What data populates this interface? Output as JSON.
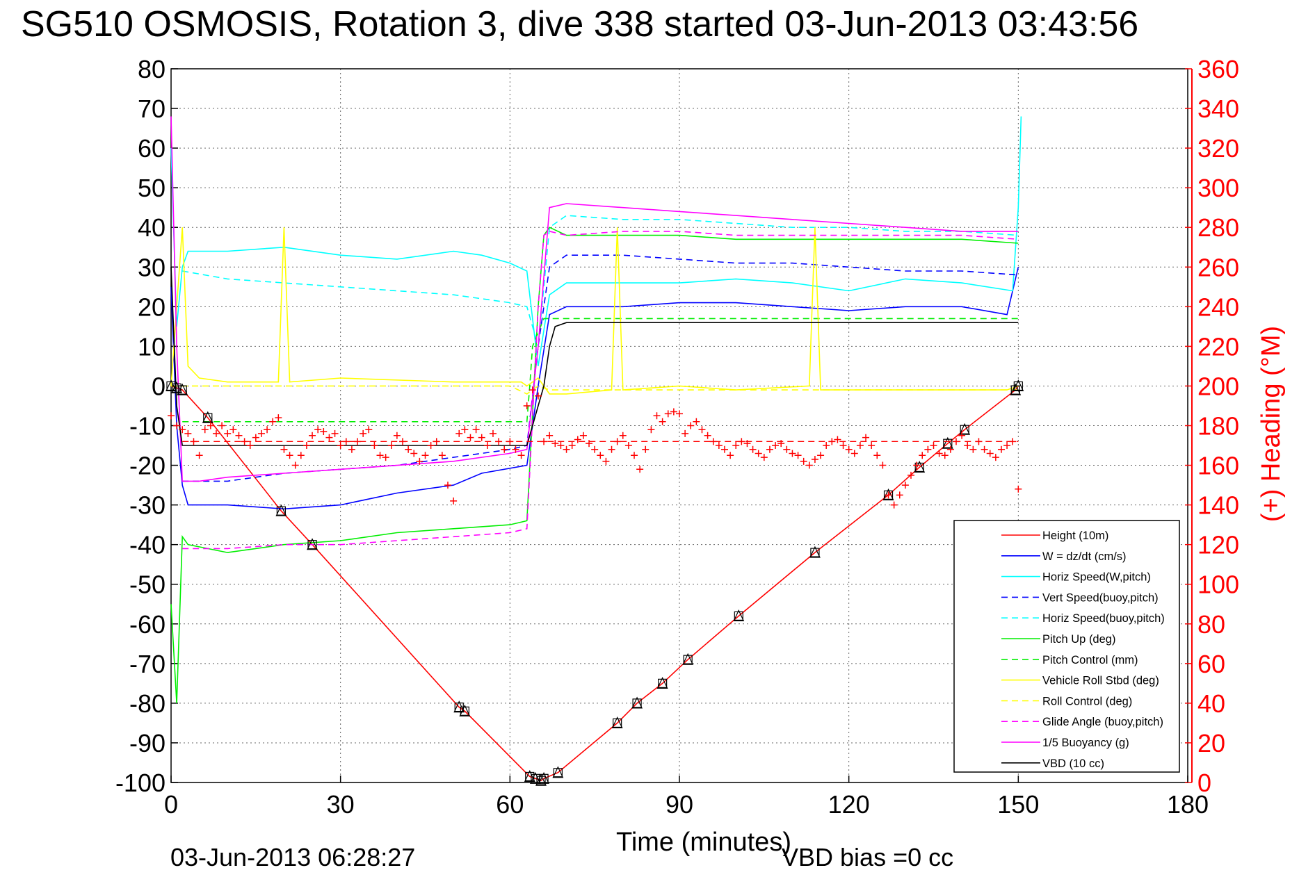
{
  "chart_data": {
    "type": "line",
    "title": "SG510 OSMOSIS, Rotation 3, dive 338 started 03-Jun-2013 03:43:56",
    "xlabel": "Time (minutes)",
    "ylabel_right": "(+) Heading (°M)",
    "footer_left": "03-Jun-2013 06:28:27",
    "footer_right": "VBD bias =0 cc",
    "xlim": [
      0,
      180
    ],
    "ylim": [
      -100,
      80
    ],
    "ylim_right": [
      0,
      360
    ],
    "x_ticks": [
      "0",
      "30",
      "60",
      "90",
      "120",
      "150",
      "180"
    ],
    "y_ticks": [
      "80",
      "70",
      "60",
      "50",
      "40",
      "30",
      "20",
      "10",
      "0",
      "-10",
      "-20",
      "-30",
      "-40",
      "-50",
      "-60",
      "-70",
      "-80",
      "-90",
      "-100"
    ],
    "y_ticks_right": [
      "360",
      "340",
      "320",
      "300",
      "280",
      "260",
      "240",
      "220",
      "200",
      "180",
      "160",
      "140",
      "120",
      "100",
      "80",
      "60",
      "40",
      "20",
      "0"
    ],
    "grid": true,
    "legend_position": "bottom-right",
    "colors": {
      "red": "#ff0000",
      "blue": "#0000ff",
      "cyan": "#00ffff",
      "green": "#00ee00",
      "yellow": "#ffff00",
      "magenta": "#ff00ff",
      "black": "#000000"
    },
    "series": [
      {
        "name": "Height (10m)",
        "color": "#ff0000",
        "style": "solid",
        "x": [
          0,
          1,
          2,
          6.5,
          19.5,
          25,
          51,
          52,
          63.5,
          64.5,
          65.5,
          66,
          68.5,
          79,
          82.5,
          87,
          91.5,
          100.5,
          114,
          127,
          132.5,
          137.5,
          140.5,
          149.5,
          150
        ],
        "y": [
          0,
          -0.5,
          -1,
          -8,
          -31.5,
          -40,
          -81,
          -82,
          -98.5,
          -99,
          -99.5,
          -99,
          -97.5,
          -85,
          -80,
          -75,
          -69,
          -58,
          -42,
          -27.5,
          -20.5,
          -14.5,
          -11,
          -1,
          0
        ]
      },
      {
        "name": "W = dz/dt (cm/s)",
        "color": "#0000ff",
        "style": "solid",
        "x": [
          0,
          1,
          2,
          3,
          10,
          20,
          30,
          40,
          50,
          55,
          63,
          65,
          67,
          70,
          80,
          90,
          100,
          110,
          120,
          130,
          140,
          148,
          150
        ],
        "y": [
          25,
          -10,
          -25,
          -30,
          -30,
          -31,
          -30,
          -27,
          -25,
          -22,
          -20,
          0,
          18,
          20,
          20,
          21,
          21,
          20,
          19,
          20,
          20,
          18,
          30
        ]
      },
      {
        "name": "Horiz Speed(W,pitch)",
        "color": "#00ffff",
        "style": "solid",
        "x": [
          0,
          1,
          2,
          3,
          10,
          20,
          30,
          40,
          50,
          55,
          60,
          63,
          65,
          67,
          70,
          80,
          90,
          100,
          110,
          120,
          130,
          140,
          149,
          150,
          150.5
        ],
        "y": [
          60,
          15,
          30,
          34,
          34,
          35,
          33,
          32,
          34,
          33,
          31,
          29,
          5,
          23,
          26,
          26,
          26,
          27,
          26,
          24,
          27,
          26,
          24,
          45,
          68
        ]
      },
      {
        "name": "Vert Speed(buoy,pitch)",
        "color": "#0000ff",
        "style": "dashed",
        "x": [
          2,
          10,
          20,
          30,
          40,
          50,
          60,
          63,
          65,
          67,
          70,
          80,
          90,
          100,
          110,
          120,
          130,
          140,
          150
        ],
        "y": [
          -24,
          -24,
          -22,
          -21,
          -20,
          -18,
          -16,
          -15,
          10,
          30,
          33,
          33,
          32,
          31,
          31,
          30,
          29,
          29,
          28
        ]
      },
      {
        "name": "Horiz Speed(buoy,pitch)",
        "color": "#00ffff",
        "style": "dashed",
        "x": [
          2,
          10,
          20,
          30,
          40,
          50,
          60,
          63,
          65,
          67,
          70,
          80,
          90,
          100,
          110,
          120,
          130,
          140,
          150
        ],
        "y": [
          29,
          27,
          26,
          25,
          24,
          23,
          21,
          20,
          10,
          40,
          43,
          42,
          42,
          41,
          40,
          40,
          39,
          39,
          38
        ]
      },
      {
        "name": "Pitch Up (deg)",
        "color": "#00ee00",
        "style": "solid",
        "x": [
          0,
          1,
          2,
          3,
          10,
          20,
          30,
          40,
          50,
          60,
          63,
          65,
          66,
          67,
          70,
          80,
          90,
          100,
          110,
          120,
          130,
          140,
          150
        ],
        "y": [
          -55,
          -80,
          -38,
          -40,
          -42,
          -40,
          -39,
          -37,
          -36,
          -35,
          -34,
          20,
          38,
          40,
          38,
          38,
          38,
          37,
          37,
          37,
          37,
          37,
          36
        ]
      },
      {
        "name": "Pitch Control (mm)",
        "color": "#00ee00",
        "style": "dashed",
        "x": [
          2,
          30,
          63,
          63.5,
          64,
          66,
          68,
          150
        ],
        "y": [
          -9,
          -9,
          -9,
          0,
          10,
          17,
          17,
          17
        ]
      },
      {
        "name": "Vehicle Roll Stbd (deg)",
        "color": "#ffff00",
        "style": "solid",
        "x": [
          0,
          1,
          2,
          3,
          5,
          10,
          19,
          20,
          21,
          30,
          50,
          62,
          63,
          65,
          67,
          70,
          78,
          79,
          80,
          90,
          100,
          113,
          114,
          115,
          130,
          140,
          148,
          150
        ],
        "y": [
          0,
          20,
          40,
          5,
          2,
          1,
          1,
          40,
          1,
          2,
          1,
          1,
          0,
          2,
          -2,
          -2,
          -1,
          40,
          -1,
          0,
          -1,
          0,
          40,
          -1,
          -1,
          -1,
          -1,
          0
        ]
      },
      {
        "name": "Roll Control (deg)",
        "color": "#ffff00",
        "style": "dashed",
        "x": [
          0,
          60,
          63,
          65,
          67,
          150
        ],
        "y": [
          0,
          0,
          -2,
          0,
          -1,
          -1
        ]
      },
      {
        "name": "Glide Angle (buoy,pitch)",
        "color": "#ff00ff",
        "style": "dashed",
        "x": [
          2,
          10,
          20,
          30,
          40,
          50,
          60,
          63,
          65,
          66,
          67,
          70,
          80,
          90,
          100,
          110,
          120,
          130,
          140,
          150
        ],
        "y": [
          -41,
          -41,
          -40,
          -40,
          -39,
          -38,
          -37,
          -36,
          20,
          38,
          39,
          38,
          39,
          39,
          38,
          38,
          38,
          38,
          38,
          37
        ]
      },
      {
        "name": "1/5 Buoyancy (g)",
        "color": "#ff00ff",
        "style": "solid",
        "x": [
          0,
          1,
          2,
          5,
          10,
          20,
          30,
          40,
          50,
          60,
          63,
          65,
          67,
          70,
          80,
          90,
          100,
          110,
          120,
          130,
          140,
          150
        ],
        "y": [
          68,
          10,
          -24,
          -24,
          -23,
          -22,
          -21,
          -20,
          -19,
          -17,
          -16,
          10,
          45,
          46,
          45,
          44,
          43,
          42,
          41,
          40,
          39,
          39
        ]
      },
      {
        "name": "VBD (10 cc)",
        "color": "#000000",
        "style": "solid",
        "x": [
          0,
          1,
          2,
          63,
          64,
          65,
          66,
          67,
          68,
          70,
          150
        ],
        "y": [
          30,
          -5,
          -15,
          -15,
          -10,
          -5,
          0,
          10,
          15,
          16,
          16
        ]
      }
    ],
    "heading": {
      "name": "(+) Heading",
      "axis": "right",
      "marker": "+",
      "color": "#ff0000",
      "x": [
        0,
        1,
        2,
        3,
        4,
        5,
        6,
        7,
        8,
        9,
        10,
        11,
        12,
        13,
        14,
        15,
        16,
        17,
        18,
        19,
        20,
        21,
        22,
        23,
        24,
        25,
        26,
        27,
        28,
        29,
        30,
        31,
        32,
        33,
        34,
        35,
        36,
        37,
        38,
        39,
        40,
        41,
        42,
        43,
        44,
        45,
        46,
        47,
        48,
        49,
        50,
        51,
        52,
        53,
        54,
        55,
        56,
        57,
        58,
        59,
        60,
        61,
        62,
        63,
        64,
        65,
        66,
        67,
        68,
        69,
        70,
        71,
        72,
        73,
        74,
        75,
        76,
        77,
        78,
        79,
        80,
        81,
        82,
        83,
        84,
        85,
        86,
        87,
        88,
        89,
        90,
        91,
        92,
        93,
        94,
        95,
        96,
        97,
        98,
        99,
        100,
        101,
        102,
        103,
        104,
        105,
        106,
        107,
        108,
        109,
        110,
        111,
        112,
        113,
        114,
        115,
        116,
        117,
        118,
        119,
        120,
        121,
        122,
        123,
        124,
        125,
        126,
        127,
        128,
        129,
        130,
        131,
        132,
        133,
        134,
        135,
        136,
        137,
        138,
        139,
        140,
        141,
        142,
        143,
        144,
        145,
        146,
        147,
        148,
        149,
        150
      ],
      "y": [
        185,
        180,
        178,
        176,
        172,
        165,
        178,
        180,
        176,
        180,
        176,
        178,
        175,
        172,
        170,
        174,
        176,
        178,
        182,
        184,
        168,
        165,
        160,
        165,
        170,
        175,
        178,
        177,
        174,
        176,
        170,
        172,
        168,
        172,
        176,
        178,
        170,
        165,
        164,
        170,
        175,
        172,
        168,
        166,
        162,
        165,
        170,
        172,
        165,
        150,
        142,
        176,
        178,
        174,
        178,
        174,
        170,
        176,
        172,
        168,
        172,
        168,
        165,
        190,
        198,
        195,
        172,
        175,
        171,
        170,
        168,
        170,
        173,
        175,
        171,
        168,
        165,
        162,
        168,
        172,
        175,
        170,
        165,
        158,
        168,
        178,
        185,
        182,
        186,
        187,
        186,
        176,
        180,
        182,
        178,
        175,
        172,
        170,
        168,
        165,
        170,
        172,
        171,
        168,
        166,
        164,
        168,
        170,
        171,
        168,
        166,
        165,
        162,
        160,
        163,
        165,
        170,
        172,
        173,
        170,
        168,
        166,
        170,
        174,
        170,
        165,
        160,
        145,
        140,
        145,
        150,
        155,
        160,
        165,
        168,
        170,
        166,
        165,
        168,
        172,
        175,
        170,
        168,
        172,
        168,
        166,
        164,
        168,
        170,
        172,
        148
      ]
    },
    "heading_ref_line": {
      "axis": "right",
      "y": 172,
      "x_range": [
        2,
        150
      ],
      "style": "dashed",
      "color": "#ff0000"
    }
  }
}
